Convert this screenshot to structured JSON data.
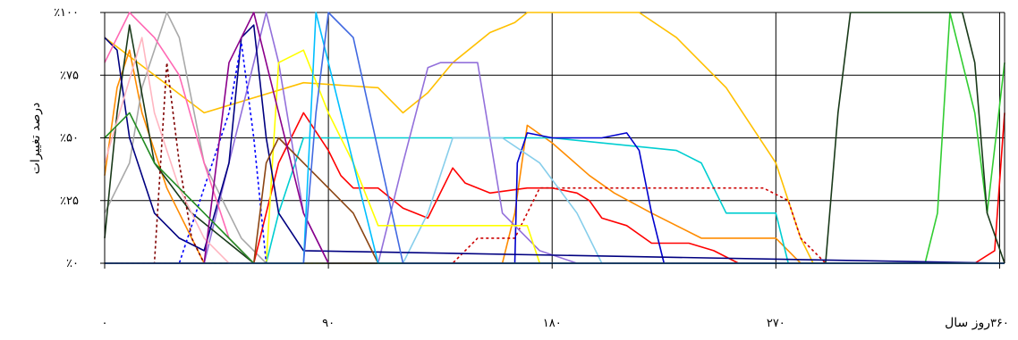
{
  "chart_data": {
    "type": "line",
    "ylabel": "درصد تغییرات",
    "xlabel": "روز سال",
    "x_ticks": [
      "۰",
      "۹۰",
      "۱۸۰",
      "۲۷۰",
      "۳۶۰"
    ],
    "x_tick_values": [
      0,
      90,
      180,
      270,
      360
    ],
    "y_ticks": [
      "٪۰",
      "٪۲۵",
      "٪۵۰",
      "٪۷۵",
      "٪۱۰۰"
    ],
    "y_tick_values": [
      0,
      25,
      50,
      75,
      100
    ],
    "xlim": [
      0,
      362
    ],
    "ylim": [
      0,
      100
    ],
    "grid": true,
    "legend": "none",
    "series": [
      {
        "color": "#FFC000",
        "dash": false,
        "points": [
          [
            0,
            90
          ],
          [
            40,
            60
          ],
          [
            80,
            72
          ],
          [
            110,
            70
          ],
          [
            120,
            60
          ],
          [
            130,
            68
          ],
          [
            140,
            80
          ],
          [
            155,
            92
          ],
          [
            165,
            96
          ],
          [
            170,
            100
          ],
          [
            215,
            100
          ],
          [
            230,
            90
          ],
          [
            250,
            70
          ],
          [
            270,
            40
          ],
          [
            280,
            10
          ],
          [
            285,
            0
          ],
          [
            362,
            0
          ]
        ]
      },
      {
        "color": "#FF8C00",
        "dash": false,
        "points": [
          [
            0,
            35
          ],
          [
            5,
            70
          ],
          [
            10,
            85
          ],
          [
            15,
            60
          ],
          [
            25,
            30
          ],
          [
            40,
            0
          ],
          [
            160,
            0
          ],
          [
            165,
            20
          ],
          [
            170,
            55
          ],
          [
            180,
            48
          ],
          [
            195,
            35
          ],
          [
            205,
            28
          ],
          [
            220,
            20
          ],
          [
            240,
            10
          ],
          [
            260,
            10
          ],
          [
            270,
            10
          ],
          [
            280,
            0
          ],
          [
            362,
            0
          ]
        ]
      },
      {
        "color": "#A9A9A9",
        "dash": false,
        "points": [
          [
            0,
            20
          ],
          [
            10,
            40
          ],
          [
            15,
            70
          ],
          [
            25,
            100
          ],
          [
            30,
            90
          ],
          [
            40,
            40
          ],
          [
            55,
            10
          ],
          [
            65,
            0
          ],
          [
            362,
            0
          ]
        ]
      },
      {
        "color": "#00CED1",
        "dash": false,
        "points": [
          [
            0,
            0
          ],
          [
            65,
            0
          ],
          [
            70,
            20
          ],
          [
            80,
            50
          ],
          [
            90,
            50
          ],
          [
            100,
            50
          ],
          [
            180,
            50
          ],
          [
            230,
            45
          ],
          [
            240,
            40
          ],
          [
            250,
            20
          ],
          [
            270,
            20
          ],
          [
            275,
            0
          ],
          [
            362,
            0
          ]
        ]
      },
      {
        "color": "#FF0000",
        "dash": false,
        "points": [
          [
            0,
            0
          ],
          [
            60,
            0
          ],
          [
            70,
            40
          ],
          [
            80,
            60
          ],
          [
            90,
            45
          ],
          [
            95,
            35
          ],
          [
            100,
            30
          ],
          [
            110,
            30
          ],
          [
            120,
            22
          ],
          [
            130,
            18
          ],
          [
            140,
            38
          ],
          [
            145,
            32
          ],
          [
            155,
            28
          ],
          [
            170,
            30
          ],
          [
            180,
            30
          ],
          [
            190,
            28
          ],
          [
            195,
            25
          ],
          [
            200,
            18
          ],
          [
            210,
            15
          ],
          [
            220,
            8
          ],
          [
            235,
            8
          ],
          [
            245,
            5
          ],
          [
            255,
            0
          ],
          [
            350,
            0
          ],
          [
            358,
            5
          ],
          [
            362,
            60
          ]
        ]
      },
      {
        "color": "#CC0000",
        "dash": true,
        "points": [
          [
            0,
            0
          ],
          [
            140,
            0
          ],
          [
            150,
            10
          ],
          [
            165,
            10
          ],
          [
            175,
            30
          ],
          [
            185,
            30
          ],
          [
            265,
            30
          ],
          [
            275,
            25
          ],
          [
            280,
            10
          ],
          [
            290,
            0
          ],
          [
            362,
            0
          ]
        ]
      },
      {
        "color": "#0000CD",
        "dash": false,
        "points": [
          [
            0,
            0
          ],
          [
            165,
            0
          ],
          [
            166,
            40
          ],
          [
            170,
            52
          ],
          [
            180,
            50
          ],
          [
            200,
            50
          ],
          [
            210,
            52
          ],
          [
            215,
            45
          ],
          [
            220,
            20
          ],
          [
            225,
            0
          ],
          [
            362,
            0
          ]
        ]
      },
      {
        "color": "#9370DB",
        "dash": false,
        "points": [
          [
            0,
            0
          ],
          [
            40,
            0
          ],
          [
            55,
            60
          ],
          [
            65,
            100
          ],
          [
            70,
            80
          ],
          [
            80,
            20
          ],
          [
            90,
            0
          ],
          [
            110,
            0
          ],
          [
            120,
            40
          ],
          [
            130,
            78
          ],
          [
            135,
            80
          ],
          [
            150,
            80
          ],
          [
            160,
            20
          ],
          [
            175,
            5
          ],
          [
            190,
            0
          ],
          [
            362,
            0
          ]
        ]
      },
      {
        "color": "#87CEEB",
        "dash": false,
        "points": [
          [
            0,
            0
          ],
          [
            120,
            0
          ],
          [
            130,
            20
          ],
          [
            140,
            50
          ],
          [
            160,
            50
          ],
          [
            175,
            40
          ],
          [
            190,
            20
          ],
          [
            200,
            0
          ],
          [
            362,
            0
          ]
        ]
      },
      {
        "color": "#FFFF00",
        "dash": false,
        "points": [
          [
            0,
            0
          ],
          [
            65,
            0
          ],
          [
            70,
            80
          ],
          [
            80,
            85
          ],
          [
            90,
            60
          ],
          [
            100,
            40
          ],
          [
            110,
            15
          ],
          [
            130,
            15
          ],
          [
            150,
            15
          ],
          [
            170,
            15
          ],
          [
            175,
            0
          ],
          [
            362,
            0
          ]
        ]
      },
      {
        "color": "#32CD32",
        "dash": false,
        "points": [
          [
            0,
            0
          ],
          [
            330,
            0
          ],
          [
            335,
            20
          ],
          [
            340,
            100
          ],
          [
            350,
            60
          ],
          [
            355,
            20
          ],
          [
            362,
            80
          ]
        ]
      },
      {
        "color": "#1A3A1A",
        "dash": false,
        "points": [
          [
            0,
            10
          ],
          [
            5,
            60
          ],
          [
            10,
            95
          ],
          [
            20,
            40
          ],
          [
            35,
            20
          ],
          [
            60,
            0
          ],
          [
            290,
            0
          ],
          [
            295,
            60
          ],
          [
            300,
            100
          ],
          [
            345,
            100
          ],
          [
            350,
            80
          ],
          [
            355,
            20
          ],
          [
            362,
            0
          ]
        ]
      },
      {
        "color": "#000080",
        "dash": false,
        "points": [
          [
            0,
            90
          ],
          [
            5,
            85
          ],
          [
            10,
            50
          ],
          [
            20,
            20
          ],
          [
            30,
            10
          ],
          [
            40,
            5
          ],
          [
            50,
            40
          ],
          [
            55,
            90
          ],
          [
            60,
            95
          ],
          [
            65,
            50
          ],
          [
            70,
            20
          ],
          [
            80,
            5
          ],
          [
            362,
            0
          ]
        ]
      },
      {
        "color": "#0000FF",
        "dash": true,
        "points": [
          [
            0,
            0
          ],
          [
            30,
            0
          ],
          [
            40,
            30
          ],
          [
            50,
            60
          ],
          [
            55,
            88
          ],
          [
            60,
            50
          ],
          [
            65,
            0
          ],
          [
            362,
            0
          ]
        ]
      },
      {
        "color": "#800000",
        "dash": true,
        "points": [
          [
            0,
            0
          ],
          [
            20,
            0
          ],
          [
            25,
            80
          ],
          [
            30,
            40
          ],
          [
            35,
            10
          ],
          [
            40,
            0
          ],
          [
            362,
            0
          ]
        ]
      },
      {
        "color": "#8B4513",
        "dash": false,
        "points": [
          [
            0,
            0
          ],
          [
            60,
            0
          ],
          [
            65,
            40
          ],
          [
            70,
            50
          ],
          [
            80,
            40
          ],
          [
            100,
            20
          ],
          [
            110,
            0
          ],
          [
            362,
            0
          ]
        ]
      },
      {
        "color": "#FF69B4",
        "dash": false,
        "points": [
          [
            0,
            80
          ],
          [
            10,
            100
          ],
          [
            20,
            90
          ],
          [
            30,
            75
          ],
          [
            40,
            40
          ],
          [
            50,
            10
          ],
          [
            60,
            0
          ],
          [
            362,
            0
          ]
        ]
      },
      {
        "color": "#FFB6C1",
        "dash": false,
        "points": [
          [
            0,
            40
          ],
          [
            15,
            90
          ],
          [
            20,
            60
          ],
          [
            30,
            30
          ],
          [
            40,
            10
          ],
          [
            50,
            0
          ],
          [
            362,
            0
          ]
        ]
      },
      {
        "color": "#8B008B",
        "dash": false,
        "points": [
          [
            0,
            0
          ],
          [
            40,
            0
          ],
          [
            50,
            80
          ],
          [
            60,
            100
          ],
          [
            70,
            60
          ],
          [
            80,
            20
          ],
          [
            90,
            0
          ],
          [
            362,
            0
          ]
        ]
      },
      {
        "color": "#228B22",
        "dash": false,
        "points": [
          [
            0,
            50
          ],
          [
            10,
            60
          ],
          [
            20,
            40
          ],
          [
            40,
            20
          ],
          [
            60,
            0
          ],
          [
            362,
            0
          ]
        ]
      },
      {
        "color": "#00BFFF",
        "dash": false,
        "points": [
          [
            0,
            0
          ],
          [
            80,
            0
          ],
          [
            85,
            100
          ],
          [
            90,
            80
          ],
          [
            100,
            40
          ],
          [
            110,
            0
          ],
          [
            362,
            0
          ]
        ]
      },
      {
        "color": "#4169E1",
        "dash": false,
        "points": [
          [
            0,
            0
          ],
          [
            80,
            0
          ],
          [
            85,
            60
          ],
          [
            90,
            100
          ],
          [
            100,
            90
          ],
          [
            120,
            0
          ],
          [
            362,
            0
          ]
        ]
      }
    ]
  }
}
